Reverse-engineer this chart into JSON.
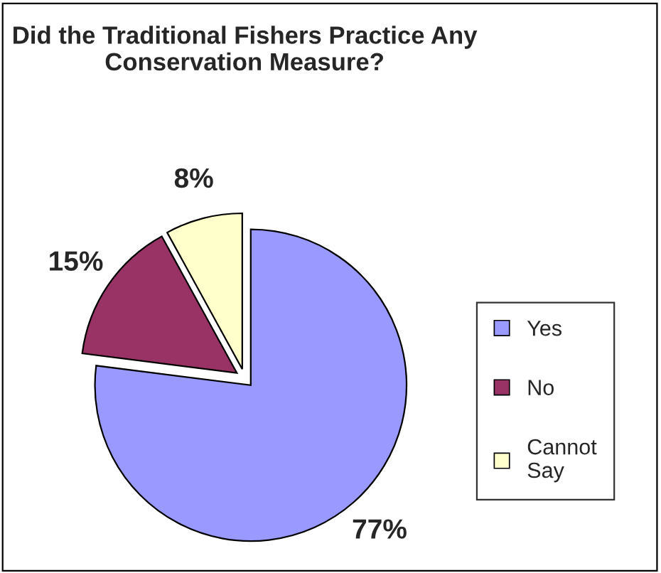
{
  "chart_data": {
    "type": "pie",
    "title": "Did the Traditional Fishers Practice Any Conservation Measure?",
    "categories": [
      "Yes",
      "No",
      "Cannot Say"
    ],
    "values": [
      77,
      15,
      8
    ],
    "colors": [
      "#9999ff",
      "#993366",
      "#ffffcc"
    ],
    "value_labels": [
      "77%",
      "15%",
      "8%"
    ],
    "legend": "right"
  }
}
